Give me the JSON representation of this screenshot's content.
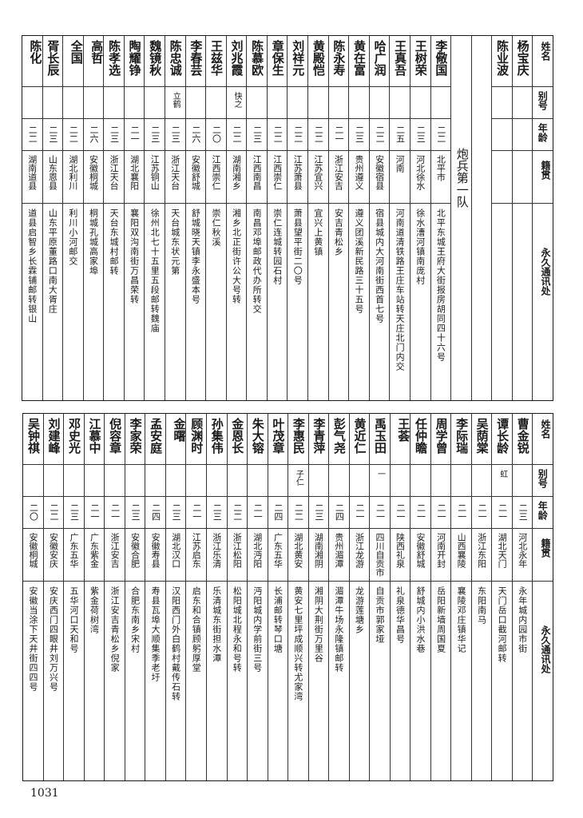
{
  "headers": {
    "name": "姓名",
    "alias": "别号",
    "age": "年龄",
    "origin": "籍贯",
    "address": "永久通讯处"
  },
  "top_table": {
    "section_label": "炮兵第一队",
    "people_before_section": [
      {
        "name": "杨宝庆",
        "alias": "",
        "age": "",
        "origin": "",
        "address": ""
      },
      {
        "name": "陈业波",
        "alias": "",
        "age": "",
        "origin": "",
        "address": ""
      }
    ],
    "people": [
      {
        "name": "李儆国",
        "alias": "",
        "age": "二二",
        "origin": "北平市",
        "address": "北平东城王府大街报房胡同四十六号"
      },
      {
        "name": "王树荣",
        "alias": "",
        "age": "二三",
        "origin": "河北徐水",
        "address": "徐水漕河镇南庞村"
      },
      {
        "name": "王真吾",
        "alias": "",
        "age": "二五",
        "origin": "河南",
        "address": "河南道清铁路王庄车站转天庄北门内交"
      },
      {
        "name": "哈广润",
        "alias": "",
        "age": "二二",
        "origin": "安徽宿县",
        "address": "宿县城内大河南街西首七号"
      },
      {
        "name": "黄在富",
        "alias": "",
        "age": "二三",
        "origin": "贵州遵义",
        "address": "遵义团溪新民路三十五号"
      },
      {
        "name": "陈永寿",
        "alias": "",
        "age": "二一",
        "origin": "浙江安吉",
        "address": "安吉青松乡"
      },
      {
        "name": "黄殿恺",
        "alias": "",
        "age": "二二",
        "origin": "江苏宜兴",
        "address": "宜兴上黄镇"
      },
      {
        "name": "刘祥元",
        "alias": "",
        "age": "二二",
        "origin": "江苏萧县",
        "address": "萧县望平街二〇号"
      },
      {
        "name": "章保生",
        "alias": "",
        "age": "二二",
        "origin": "江西崇仁",
        "address": "崇仁连城转园石村"
      },
      {
        "name": "陈慕欧",
        "alias": "",
        "age": "二三",
        "origin": "江西南昌",
        "address": "南昌邓埠邮政代办所转交"
      },
      {
        "name": "刘兆霞",
        "alias": "快之",
        "age": "二二",
        "origin": "湖南湘乡",
        "address": "湘乡北正街许公大号转"
      },
      {
        "name": "王兹华",
        "alias": "",
        "age": "二〇",
        "origin": "江西崇仁",
        "address": "崇仁秋溪"
      },
      {
        "name": "李春芸",
        "alias": "",
        "age": "二六",
        "origin": "安徽舒城",
        "address": "舒城晓天镇李永盛本号"
      },
      {
        "name": "陈忠诚",
        "alias": "立鹤",
        "age": "二三",
        "origin": "浙江天台",
        "address": "天台城东状元第"
      },
      {
        "name": "魏镜秋",
        "alias": "",
        "age": "二三",
        "origin": "江苏铜山",
        "address": "徐州北七十五里五段邮转魏庙"
      },
      {
        "name": "陶耀铮",
        "alias": "",
        "age": "二一",
        "origin": "湖北襄阳",
        "address": "襄阳双沟南街万昌荣转"
      },
      {
        "name": "陈孝选",
        "alias": "",
        "age": "二三",
        "origin": "浙江天台",
        "address": "天台东城村邮转"
      },
      {
        "name": "高哲",
        "alias": "",
        "age": "二六",
        "origin": "安徽桐城",
        "address": "桐城孔城高家埠"
      },
      {
        "name": "全国",
        "alias": "",
        "age": "二二",
        "origin": "湖北利川",
        "address": "利川小河邮交"
      },
      {
        "name": "胥长辰",
        "alias": "",
        "age": "二三",
        "origin": "山东恩县",
        "address": "山东平原董路口南大胥庄"
      },
      {
        "name": "陈化",
        "alias": "",
        "age": "二二",
        "origin": "湖南道县",
        "address": "道县启智乡长霖铺邮转银山"
      }
    ]
  },
  "bottom_table": {
    "people": [
      {
        "name": "曹金锐",
        "alias": "",
        "age": "二三",
        "origin": "河北永年",
        "address": "永年城内园市街"
      },
      {
        "name": "谭长龄",
        "alias": "虹",
        "age": "二一",
        "origin": "湖北天门",
        "address": "天门岳口截河邮转"
      },
      {
        "name": "吴荫棠",
        "alias": "",
        "age": "二一",
        "origin": "浙江东阳",
        "address": "东阳南马"
      },
      {
        "name": "李际瑞",
        "alias": "",
        "age": "二一",
        "origin": "山西襄陵",
        "address": "襄陵邓庄镇华记"
      },
      {
        "name": "周学曾",
        "alias": "",
        "age": "二一",
        "origin": "河南开封",
        "address": "岳阳新墙周国夏"
      },
      {
        "name": "任仲瞻",
        "alias": "",
        "age": "二一",
        "origin": "安徽舒城",
        "address": "舒城内小洪水巷"
      },
      {
        "name": "王荟",
        "alias": "",
        "age": "二一",
        "origin": "陕西礼泉",
        "address": "礼泉德华昌号"
      },
      {
        "name": "禹玉田",
        "alias": "一",
        "age": "二一",
        "origin": "四川自贡市",
        "address": "自贡市郭家垭"
      },
      {
        "name": "黄近仁",
        "alias": "",
        "age": "二一",
        "origin": "浙江龙游",
        "address": "龙游莲塘乡"
      },
      {
        "name": "彭气尧",
        "alias": "",
        "age": "二四",
        "origin": "贵州湄潭",
        "address": "湄潭牛场永隆镇邮转"
      },
      {
        "name": "李青萍",
        "alias": "",
        "age": "二三",
        "origin": "湖南湘阴",
        "address": "湘阴大荆街万里谷"
      },
      {
        "name": "李惠民",
        "alias": "子仁",
        "age": "二二",
        "origin": "湖北黄安",
        "address": "黄安七里坪成顺兴转尤家湾"
      },
      {
        "name": "叶茂章",
        "alias": "",
        "age": "二四",
        "origin": "广东五华",
        "address": "长浦邮转琴口塘"
      },
      {
        "name": "朱大镕",
        "alias": "",
        "age": "二一",
        "origin": "湖北沔阳",
        "address": "沔阳城内学前街三号"
      },
      {
        "name": "金恩长",
        "alias": "",
        "age": "二二",
        "origin": "浙江松阳",
        "address": "松阳城北程永和号转"
      },
      {
        "name": "孙集伟",
        "alias": "",
        "age": "二三",
        "origin": "浙江乐清",
        "address": "乐清城东街担水潭"
      },
      {
        "name": "顾渊时",
        "alias": "",
        "age": "二一",
        "origin": "江苏启东",
        "address": "启东和合镇顾躬厚堂"
      },
      {
        "name": "金曙",
        "alias": "",
        "age": "二三",
        "origin": "湖北汉口",
        "address": "汉阳西门外白鹤村戴传石转"
      },
      {
        "name": "孟安庭",
        "alias": "",
        "age": "二四",
        "origin": "安徽寿县",
        "address": "寿县瓦埠大顺集季老圩"
      },
      {
        "name": "李家荣",
        "alias": "",
        "age": "二三",
        "origin": "安徽合肥",
        "address": "合肥东南乡宋村"
      },
      {
        "name": "倪容章",
        "alias": "",
        "age": "二一",
        "origin": "浙江安吉",
        "address": "浙江安吉青松乡倪家"
      },
      {
        "name": "江慕中",
        "alias": "",
        "age": "二一",
        "origin": "广东紫金",
        "address": "紫金荷树湾"
      },
      {
        "name": "邓史光",
        "alias": "",
        "age": "二三",
        "origin": "广东五华",
        "address": "五华河口天和号"
      },
      {
        "name": "刘建峰",
        "alias": "",
        "age": "二二",
        "origin": "安徽安庆",
        "address": "安庆西门四眼井刘万兴号"
      },
      {
        "name": "吴钟祺",
        "alias": "",
        "age": "二〇",
        "origin": "安徽桐城",
        "address": "安徽当涂下天井街四四号"
      }
    ]
  },
  "page_number": "1031"
}
